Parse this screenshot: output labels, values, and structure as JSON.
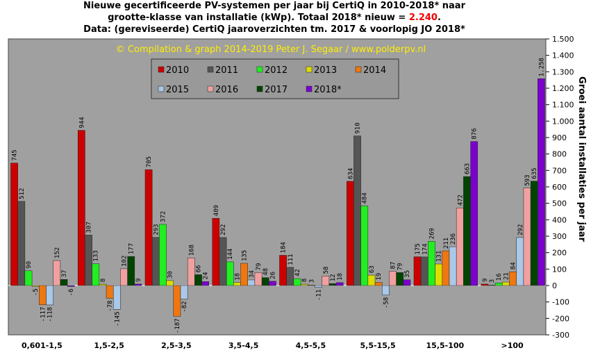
{
  "chart_data": {
    "type": "bar",
    "title": [
      "Nieuwe  gecertificeerde  PV-systemen per jaar bij CertiQ in 2010-2018*  naar",
      [
        "grootte-klasse van installatie (kWp).  Totaal 2018*  nieuw = ",
        "2.240",
        "."
      ],
      "Data: (gereviseerde) CertiQ jaaroverzichten tm. 2017 & voorlopig JO 2018*"
    ],
    "watermark": "© Compilation  & graph 2014-2019 Peter J. Segaar / www.polderpv.nl",
    "ylabel": "Groei  aantal installaties  per jaar",
    "y_axis_side": "right",
    "categories": [
      "0,601-1,5",
      "1,5-2,5",
      "2,5-3,5",
      "3,5-4,5",
      "4,5-5,5",
      "5,5-15,5",
      "15,5-100",
      ">100"
    ],
    "series": [
      {
        "name": "2010",
        "color": "#cc0000",
        "values": [
          745,
          944,
          705,
          409,
          184,
          634,
          175,
          9
        ]
      },
      {
        "name": "2011",
        "color": "#555555",
        "values": [
          512,
          307,
          293,
          292,
          111,
          910,
          174,
          3
        ]
      },
      {
        "name": "2012",
        "color": "#22ee22",
        "values": [
          90,
          133,
          372,
          144,
          42,
          484,
          269,
          16
        ]
      },
      {
        "name": "2013",
        "color": "#dddd00",
        "values": [
          -5,
          8,
          30,
          18,
          8,
          63,
          131,
          21
        ]
      },
      {
        "name": "2014",
        "color": "#ee7711",
        "values": [
          -117,
          -78,
          -187,
          135,
          3,
          19,
          211,
          84
        ]
      },
      {
        "name": "2015",
        "color": "#aac8e8",
        "values": [
          -118,
          -145,
          -82,
          34,
          -11,
          -58,
          236,
          292
        ]
      },
      {
        "name": "2016",
        "color": "#f0a0a0",
        "values": [
          152,
          102,
          168,
          79,
          58,
          87,
          472,
          593
        ]
      },
      {
        "name": "2017",
        "color": "#004400",
        "values": [
          37,
          177,
          66,
          48,
          12,
          79,
          663,
          635
        ]
      },
      {
        "name": "2018*",
        "color": "#7a00cc",
        "values": [
          -6,
          9,
          24,
          26,
          18,
          35,
          876,
          1258
        ],
        "value_labels": [
          "-6",
          "9",
          "24",
          "26",
          "18",
          "35",
          "876",
          "1.258"
        ]
      }
    ],
    "ylim": [
      -300,
      1500
    ],
    "yticks": [
      -300,
      -200,
      -100,
      0,
      100,
      200,
      300,
      400,
      500,
      600,
      700,
      800,
      900,
      {
        "value": 1000,
        "label": "1.000"
      },
      {
        "value": 1100,
        "label": "1.100"
      },
      {
        "value": 1200,
        "label": "1.200"
      },
      {
        "value": 1300,
        "label": "1.300"
      },
      {
        "value": 1400,
        "label": "1.400"
      },
      {
        "value": 1500,
        "label": "1.500"
      }
    ],
    "grid": false
  }
}
